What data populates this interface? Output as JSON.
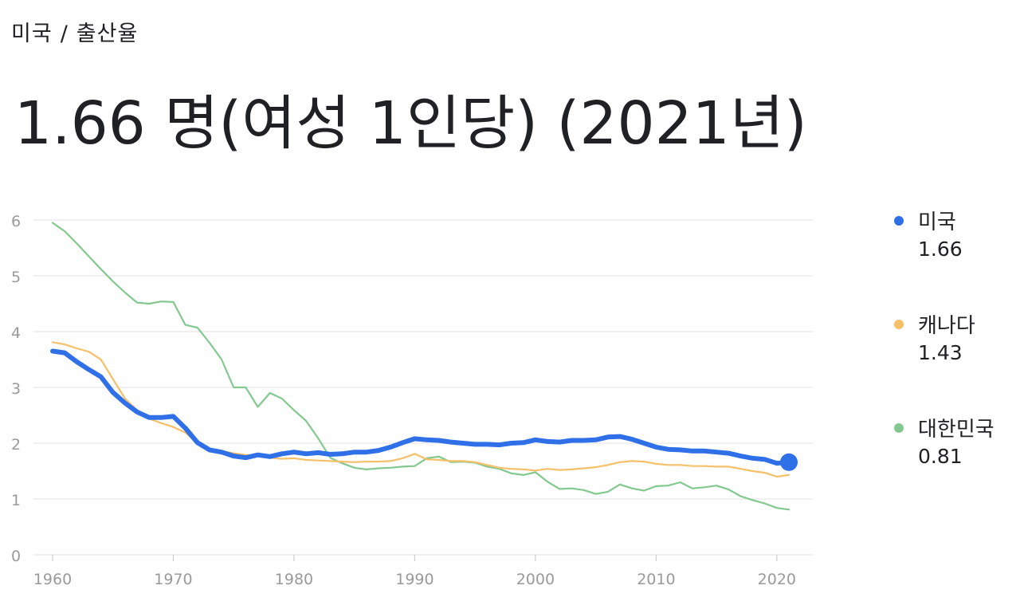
{
  "breadcrumb": {
    "country": "미국",
    "separator": "/",
    "topic": "출산율"
  },
  "headline": "1.66 명(여성 1인당) (2021년)",
  "colors": {
    "united_states": "#2f6fe8",
    "canada": "#f6c069",
    "korea": "#83c98f",
    "grid": "#e6e6e6",
    "tick_label": "#9a9a9a"
  },
  "chart_data": {
    "type": "line",
    "x": [
      1960,
      1961,
      1962,
      1963,
      1964,
      1965,
      1966,
      1967,
      1968,
      1969,
      1970,
      1971,
      1972,
      1973,
      1974,
      1975,
      1976,
      1977,
      1978,
      1979,
      1980,
      1981,
      1982,
      1983,
      1984,
      1985,
      1986,
      1987,
      1988,
      1989,
      1990,
      1991,
      1992,
      1993,
      1994,
      1995,
      1996,
      1997,
      1998,
      1999,
      2000,
      2001,
      2002,
      2003,
      2004,
      2005,
      2006,
      2007,
      2008,
      2009,
      2010,
      2011,
      2012,
      2013,
      2014,
      2015,
      2016,
      2017,
      2018,
      2019,
      2020,
      2021
    ],
    "xticks": [
      1960,
      1970,
      1980,
      1990,
      2000,
      2010,
      2020
    ],
    "yticks": [
      0,
      1,
      2,
      3,
      4,
      5,
      6
    ],
    "xlim": [
      1960,
      2021
    ],
    "ylim": [
      0,
      6
    ],
    "grid": true,
    "legend_position": "right",
    "series": [
      {
        "name": "미국",
        "latest": "1.66",
        "color": "#2f6fe8",
        "values": [
          3.65,
          3.62,
          3.46,
          3.32,
          3.19,
          2.91,
          2.72,
          2.56,
          2.46,
          2.46,
          2.48,
          2.27,
          2.01,
          1.88,
          1.84,
          1.77,
          1.74,
          1.79,
          1.76,
          1.81,
          1.84,
          1.81,
          1.83,
          1.8,
          1.81,
          1.84,
          1.84,
          1.87,
          1.93,
          2.01,
          2.08,
          2.06,
          2.05,
          2.02,
          2.0,
          1.98,
          1.98,
          1.97,
          2.0,
          2.01,
          2.06,
          2.03,
          2.02,
          2.05,
          2.05,
          2.06,
          2.11,
          2.12,
          2.07,
          2.0,
          1.93,
          1.89,
          1.88,
          1.86,
          1.86,
          1.84,
          1.82,
          1.77,
          1.73,
          1.71,
          1.64,
          1.66
        ]
      },
      {
        "name": "캐나다",
        "latest": "1.43",
        "color": "#f6c069",
        "values": [
          3.81,
          3.77,
          3.7,
          3.64,
          3.5,
          3.15,
          2.8,
          2.59,
          2.44,
          2.36,
          2.29,
          2.19,
          2.0,
          1.9,
          1.86,
          1.82,
          1.79,
          1.77,
          1.74,
          1.72,
          1.73,
          1.7,
          1.69,
          1.68,
          1.67,
          1.66,
          1.67,
          1.67,
          1.68,
          1.73,
          1.81,
          1.71,
          1.7,
          1.68,
          1.68,
          1.66,
          1.61,
          1.56,
          1.54,
          1.53,
          1.51,
          1.54,
          1.52,
          1.53,
          1.55,
          1.57,
          1.61,
          1.66,
          1.68,
          1.67,
          1.63,
          1.61,
          1.61,
          1.59,
          1.59,
          1.58,
          1.58,
          1.54,
          1.5,
          1.47,
          1.4,
          1.43
        ]
      },
      {
        "name": "대한민국",
        "latest": "0.81",
        "color": "#83c98f",
        "values": [
          5.95,
          5.8,
          5.58,
          5.35,
          5.12,
          4.9,
          4.7,
          4.52,
          4.5,
          4.54,
          4.53,
          4.12,
          4.07,
          3.8,
          3.5,
          3.0,
          3.0,
          2.65,
          2.9,
          2.8,
          2.59,
          2.4,
          2.09,
          1.74,
          1.64,
          1.56,
          1.53,
          1.55,
          1.56,
          1.58,
          1.59,
          1.73,
          1.76,
          1.66,
          1.67,
          1.65,
          1.58,
          1.54,
          1.46,
          1.43,
          1.48,
          1.31,
          1.18,
          1.19,
          1.16,
          1.09,
          1.13,
          1.26,
          1.19,
          1.15,
          1.23,
          1.24,
          1.3,
          1.19,
          1.21,
          1.24,
          1.17,
          1.05,
          0.98,
          0.92,
          0.84,
          0.81
        ]
      }
    ]
  }
}
